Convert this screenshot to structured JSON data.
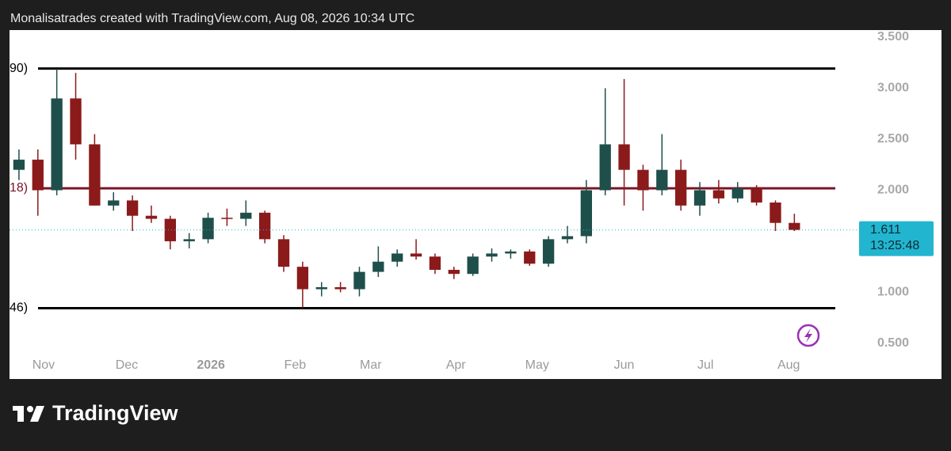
{
  "header": {
    "text": "Monalisatrades created with TradingView.com, Aug 08, 2026 10:34 UTC"
  },
  "footer": {
    "brand": "TradingView"
  },
  "chart_data": {
    "type": "candlestick",
    "up_color": "#1f4f4a",
    "down_color": "#8b1a1a",
    "xlim": [
      0,
      44
    ],
    "ylim": [
      0.15,
      3.57
    ],
    "yticks": [
      {
        "value": 0.5,
        "label": "0.500"
      },
      {
        "value": 1,
        "label": "1.000"
      },
      {
        "value": 2,
        "label": "2.000"
      },
      {
        "value": 2.5,
        "label": "2.500"
      },
      {
        "value": 3,
        "label": "3.000"
      },
      {
        "value": 3.5,
        "label": "3.500"
      }
    ],
    "xticks": [
      {
        "value": 1.8,
        "label": "Nov"
      },
      {
        "value": 6.2,
        "label": "Dec"
      },
      {
        "value": 10.65,
        "label": "2026"
      },
      {
        "value": 15.1,
        "label": "Feb"
      },
      {
        "value": 19.1,
        "label": "Mar"
      },
      {
        "value": 23.6,
        "label": "Apr"
      },
      {
        "value": 27.9,
        "label": "May"
      },
      {
        "value": 32.5,
        "label": "Jun"
      },
      {
        "value": 36.8,
        "label": "Jul"
      },
      {
        "value": 41.2,
        "label": "Aug"
      }
    ],
    "series": [
      {
        "open": [
          2.2,
          2.3,
          2.0,
          2.9,
          2.45,
          1.85,
          1.9,
          1.75,
          1.72,
          1.5,
          1.52,
          1.73,
          1.72,
          1.78,
          1.52,
          1.25,
          1.03,
          1.05,
          1.03,
          1.2,
          1.3,
          1.38,
          1.35,
          1.22,
          1.18,
          1.35,
          1.38,
          1.4,
          1.28,
          1.52,
          1.55,
          2.0,
          2.45,
          2.2,
          2.0,
          2.2,
          1.85,
          2.0,
          1.92,
          2.02,
          1.88,
          1.68
        ],
        "high": [
          2.4,
          2.4,
          3.19,
          3.15,
          2.55,
          1.98,
          1.95,
          1.85,
          1.75,
          1.58,
          1.78,
          1.82,
          1.9,
          1.8,
          1.56,
          1.3,
          1.1,
          1.1,
          1.25,
          1.45,
          1.42,
          1.52,
          1.38,
          1.25,
          1.38,
          1.43,
          1.42,
          1.42,
          1.55,
          1.65,
          2.1,
          3.0,
          3.09,
          2.25,
          2.55,
          2.3,
          2.08,
          2.1,
          2.08,
          2.05,
          1.9,
          1.77
        ],
        "low": [
          2.1,
          1.75,
          1.95,
          2.3,
          1.85,
          1.8,
          1.6,
          1.68,
          1.42,
          1.43,
          1.48,
          1.65,
          1.65,
          1.48,
          1.2,
          0.85,
          0.96,
          1.0,
          0.96,
          1.15,
          1.25,
          1.32,
          1.18,
          1.13,
          1.16,
          1.3,
          1.33,
          1.26,
          1.25,
          1.48,
          1.48,
          1.95,
          1.85,
          1.8,
          1.95,
          1.8,
          1.75,
          1.87,
          1.88,
          1.85,
          1.6,
          1.6
        ],
        "close": [
          2.3,
          2.0,
          2.9,
          2.45,
          1.85,
          1.9,
          1.75,
          1.72,
          1.5,
          1.52,
          1.73,
          1.72,
          1.78,
          1.52,
          1.25,
          1.03,
          1.05,
          1.03,
          1.2,
          1.3,
          1.38,
          1.35,
          1.22,
          1.18,
          1.35,
          1.38,
          1.4,
          1.28,
          1.52,
          1.55,
          2.0,
          2.45,
          2.2,
          2.0,
          2.2,
          1.85,
          2.0,
          1.92,
          2.02,
          1.88,
          1.68,
          1.611
        ]
      }
    ],
    "levels": [
      {
        "value": 3.193,
        "label": "90)",
        "color": "#000000"
      },
      {
        "value": 2.019,
        "label": "18)",
        "color": "#7a1526"
      },
      {
        "value": 0.844,
        "label": "46)",
        "color": "#000000"
      }
    ],
    "last_price": {
      "value": 1.611,
      "countdown": "13:25:48",
      "color": "#22b5d0"
    }
  }
}
